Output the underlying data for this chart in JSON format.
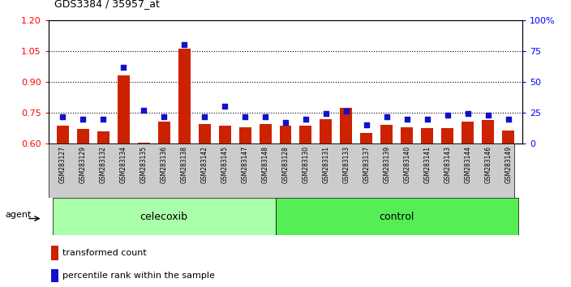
{
  "title": "GDS3384 / 35957_at",
  "samples": [
    "GSM283127",
    "GSM283129",
    "GSM283132",
    "GSM283134",
    "GSM283135",
    "GSM283136",
    "GSM283138",
    "GSM283142",
    "GSM283145",
    "GSM283147",
    "GSM283148",
    "GSM283128",
    "GSM283130",
    "GSM283131",
    "GSM283133",
    "GSM283137",
    "GSM283139",
    "GSM283140",
    "GSM283141",
    "GSM283143",
    "GSM283144",
    "GSM283146",
    "GSM283149"
  ],
  "transformed_count": [
    0.685,
    0.67,
    0.66,
    0.93,
    0.605,
    0.705,
    1.06,
    0.695,
    0.685,
    0.68,
    0.695,
    0.685,
    0.685,
    0.72,
    0.775,
    0.65,
    0.69,
    0.68,
    0.675,
    0.675,
    0.705,
    0.715,
    0.665
  ],
  "percentile_rank": [
    22,
    20,
    20,
    62,
    27,
    22,
    80,
    22,
    30,
    22,
    22,
    17,
    20,
    24,
    26,
    15,
    22,
    20,
    20,
    23,
    24,
    23,
    20
  ],
  "n_celecoxib": 11,
  "n_control": 12,
  "celecoxib_label": "celecoxib",
  "control_label": "control",
  "agent_label": "agent",
  "ylim_left": [
    0.6,
    1.2
  ],
  "ylim_right": [
    0,
    100
  ],
  "yticks_left": [
    0.6,
    0.75,
    0.9,
    1.05,
    1.2
  ],
  "yticks_right": [
    0,
    25,
    50,
    75,
    100
  ],
  "yticklabels_right": [
    "0",
    "25",
    "50",
    "75",
    "100%"
  ],
  "bar_color": "#CC2200",
  "dot_color": "#1111CC",
  "celecoxib_bg": "#AAFFAA",
  "control_bg": "#55EE55",
  "legend_bar_label": "transformed count",
  "legend_dot_label": "percentile rank within the sample"
}
